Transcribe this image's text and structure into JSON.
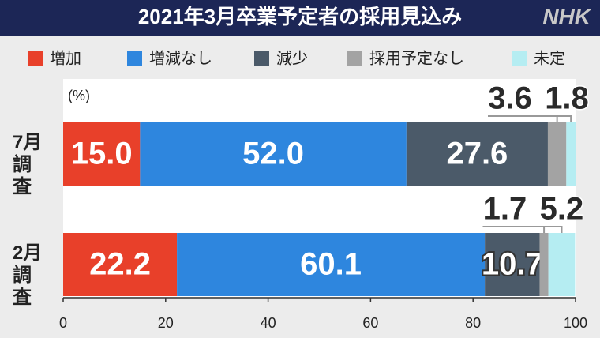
{
  "chart_data": {
    "type": "stacked-bar",
    "orientation": "horizontal",
    "title": "2021年3月卒業予定者の採用見込み",
    "logo": "NHK",
    "unit_label": "(%)",
    "categories": [
      "7月調査",
      "2月調査"
    ],
    "series": [
      {
        "name": "増加",
        "color": "#e8402a",
        "values": [
          15.0,
          22.2
        ],
        "value_labels": [
          "15.0",
          "22.2"
        ]
      },
      {
        "name": "増減なし",
        "color": "#2e86de",
        "values": [
          52.0,
          60.1
        ],
        "value_labels": [
          "52.0",
          "60.1"
        ]
      },
      {
        "name": "減少",
        "color": "#4b5a69",
        "values": [
          27.6,
          10.7
        ]
      },
      {
        "name": "採用予定なし",
        "color": "#a3a3a3",
        "values": [
          3.6,
          1.7
        ]
      },
      {
        "name": "未定",
        "color": "#b5edf2",
        "values": [
          1.8,
          5.2
        ]
      }
    ],
    "xlim": [
      0,
      100
    ],
    "xticks": [
      0,
      20,
      40,
      60,
      80,
      100
    ]
  }
}
